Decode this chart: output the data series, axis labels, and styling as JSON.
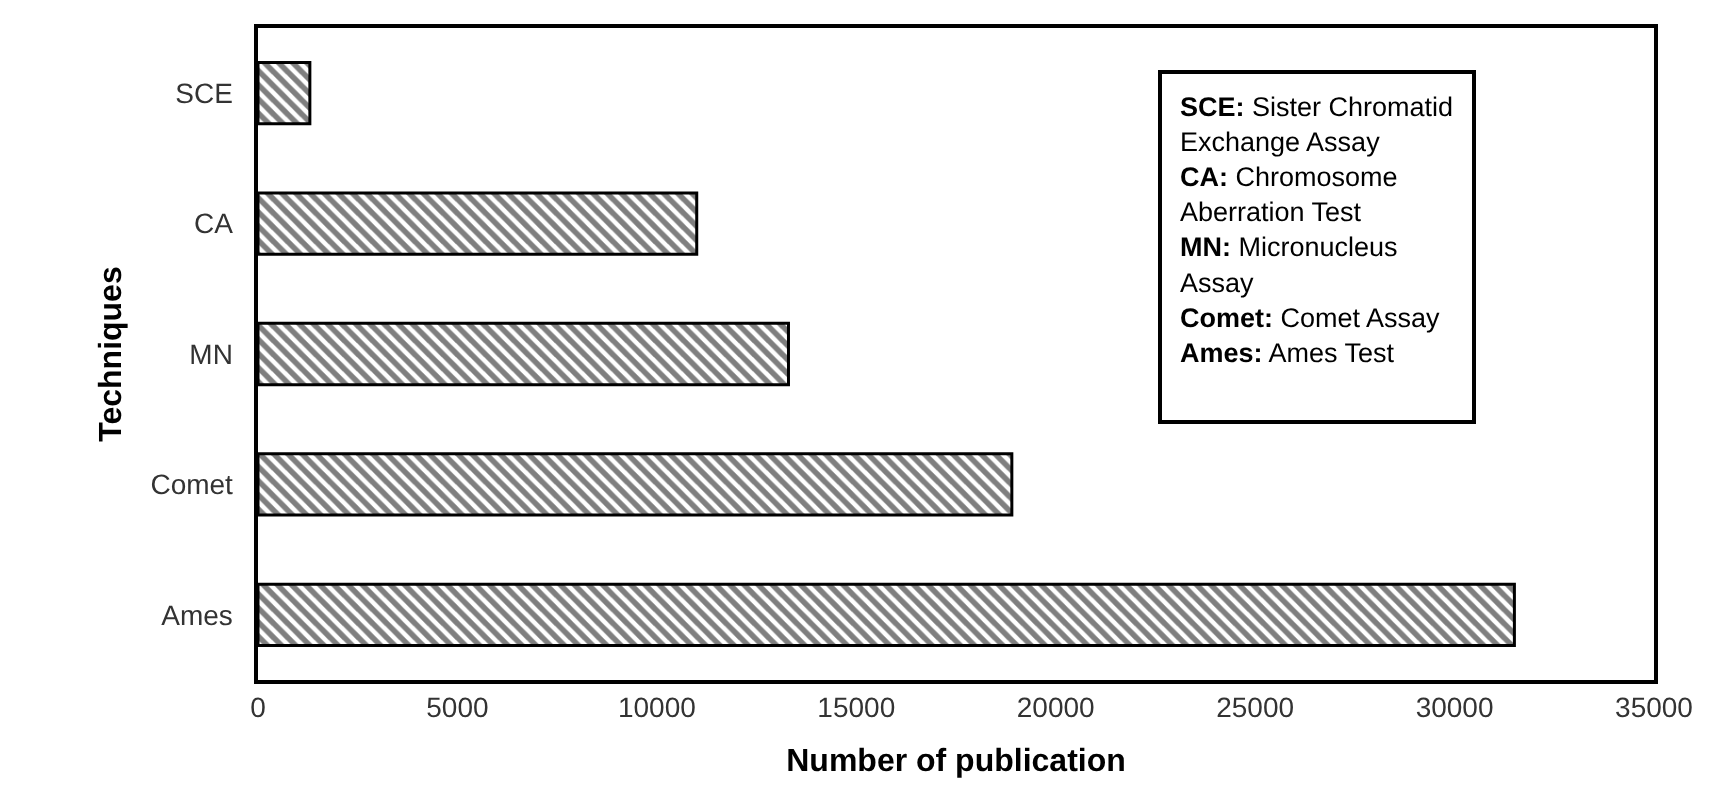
{
  "chart_data": {
    "type": "bar",
    "orientation": "horizontal",
    "categories": [
      "SCE",
      "CA",
      "MN",
      "Comet",
      "Ames"
    ],
    "values": [
      1300,
      11000,
      13300,
      18900,
      31500
    ],
    "color": "#000000",
    "xlim": [
      0,
      35000
    ],
    "xticks": [
      0,
      5000,
      10000,
      15000,
      20000,
      25000,
      30000,
      35000
    ],
    "xlabel": "Number of publication",
    "ylabel": "Techniques",
    "grid": false,
    "legend": false,
    "annotations": [
      "SCE: Sister Chromatid\nExchange Assay",
      "CA: Chromosome\nAberration Test",
      "MN: Micronucleus\nAssay",
      "Comet: Comet Assay",
      "Ames: Ames Test"
    ]
  }
}
